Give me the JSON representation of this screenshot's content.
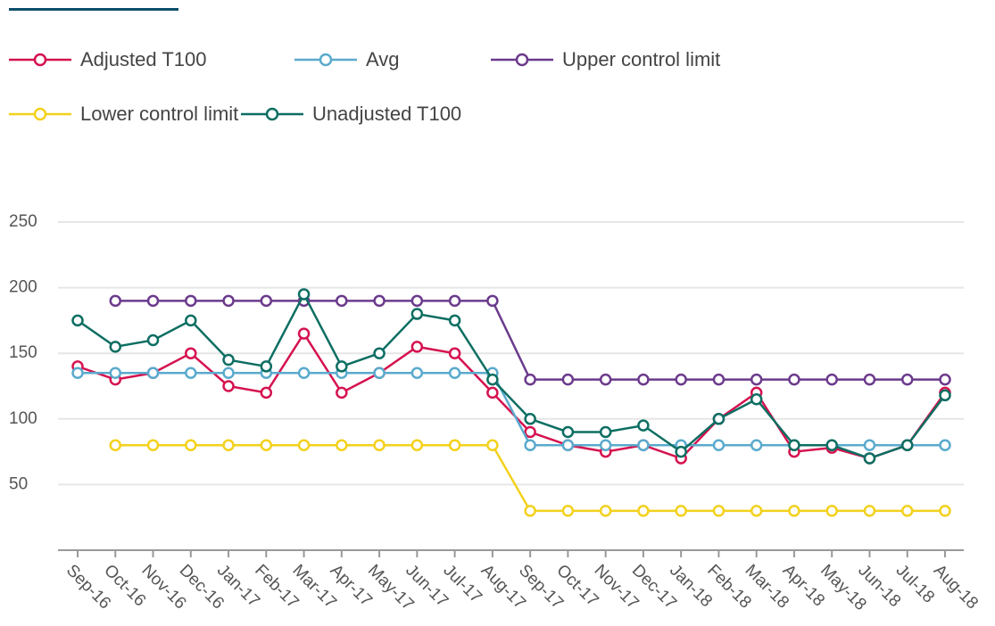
{
  "chart_data": {
    "type": "line",
    "categories": [
      "Sep-16",
      "Oct-16",
      "Nov-16",
      "Dec-16",
      "Jan-17",
      "Feb-17",
      "Mar-17",
      "Apr-17",
      "May-17",
      "Jun-17",
      "Jul-17",
      "Aug-17",
      "Sep-17",
      "Oct-17",
      "Nov-17",
      "Dec-17",
      "Jan-18",
      "Feb-18",
      "Mar-18",
      "Apr-18",
      "May-18",
      "Jun-18",
      "Jul-18",
      "Aug-18"
    ],
    "series": [
      {
        "name": "Adjusted T100",
        "color": "#d5124f",
        "values": [
          140,
          130,
          135,
          150,
          125,
          120,
          165,
          120,
          135,
          155,
          150,
          120,
          90,
          80,
          75,
          80,
          70,
          100,
          120,
          75,
          78,
          70,
          80,
          120
        ]
      },
      {
        "name": "Avg",
        "color": "#5aaacd",
        "values": [
          135,
          135,
          135,
          135,
          135,
          135,
          135,
          135,
          135,
          135,
          135,
          135,
          80,
          80,
          80,
          80,
          80,
          80,
          80,
          80,
          80,
          80,
          80,
          80
        ]
      },
      {
        "name": "Upper control limit",
        "color": "#6b3a8c",
        "values": [
          null,
          190,
          190,
          190,
          190,
          190,
          190,
          190,
          190,
          190,
          190,
          190,
          130,
          130,
          130,
          130,
          130,
          130,
          130,
          130,
          130,
          130,
          130,
          130
        ]
      },
      {
        "name": "Lower control limit",
        "color": "#f3d11c",
        "values": [
          null,
          80,
          80,
          80,
          80,
          80,
          80,
          80,
          80,
          80,
          80,
          80,
          30,
          30,
          30,
          30,
          30,
          30,
          30,
          30,
          30,
          30,
          30,
          30
        ]
      },
      {
        "name": "Unadjusted T100",
        "color": "#0d6e62",
        "values": [
          175,
          155,
          160,
          175,
          145,
          140,
          195,
          140,
          150,
          180,
          175,
          130,
          100,
          90,
          90,
          95,
          75,
          100,
          115,
          80,
          80,
          70,
          80,
          118
        ]
      }
    ],
    "ylim": [
      0,
      250
    ],
    "yticks": [
      50,
      100,
      150,
      200,
      250
    ],
    "grid": true
  }
}
